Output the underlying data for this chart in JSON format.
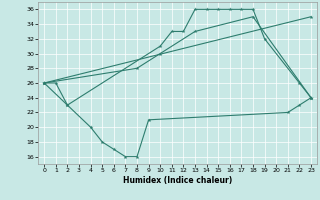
{
  "xlabel": "Humidex (Indice chaleur)",
  "xlim": [
    -0.5,
    23.5
  ],
  "ylim": [
    15.0,
    37.0
  ],
  "yticks": [
    16,
    18,
    20,
    22,
    24,
    26,
    28,
    30,
    32,
    34,
    36
  ],
  "xticks": [
    0,
    1,
    2,
    3,
    4,
    5,
    6,
    7,
    8,
    9,
    10,
    11,
    12,
    13,
    14,
    15,
    16,
    17,
    18,
    19,
    20,
    21,
    22,
    23
  ],
  "bg_color": "#c8e8e5",
  "line_color": "#2e7d6e",
  "series": [
    {
      "x": [
        0,
        1,
        2,
        10,
        11,
        12,
        13,
        14,
        15,
        16,
        17,
        18,
        19,
        22,
        23
      ],
      "y": [
        26,
        26,
        23,
        31,
        33,
        33,
        36,
        36,
        36,
        36,
        36,
        36,
        32,
        26,
        24
      ]
    },
    {
      "x": [
        0,
        8,
        10,
        13,
        18,
        23
      ],
      "y": [
        26,
        28,
        30,
        33,
        35,
        24
      ]
    },
    {
      "x": [
        0,
        23
      ],
      "y": [
        26,
        35
      ]
    },
    {
      "x": [
        0,
        2,
        4,
        5,
        6,
        7,
        8,
        9,
        21,
        22,
        23
      ],
      "y": [
        26,
        23,
        20,
        18,
        17,
        16,
        16,
        21,
        22,
        23,
        24
      ]
    }
  ]
}
